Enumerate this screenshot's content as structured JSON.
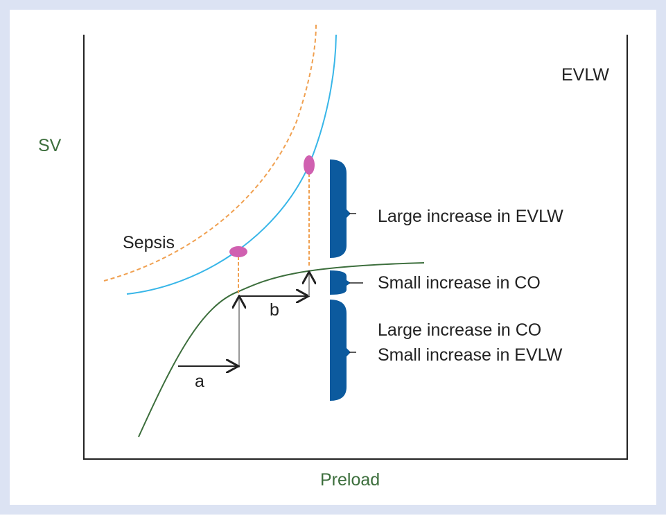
{
  "axes": {
    "y_label": "SV",
    "x_label": "Preload",
    "right_label": "EVLW"
  },
  "curves": {
    "sepsis_label": "Sepsis"
  },
  "arrows": {
    "a": "a",
    "b": "b"
  },
  "braces": [
    {
      "lines": [
        "Large increase in EVLW"
      ]
    },
    {
      "lines": [
        "Small increase in CO"
      ]
    },
    {
      "lines": [
        "Large increase in CO",
        "Small increase in EVLW"
      ]
    }
  ]
}
